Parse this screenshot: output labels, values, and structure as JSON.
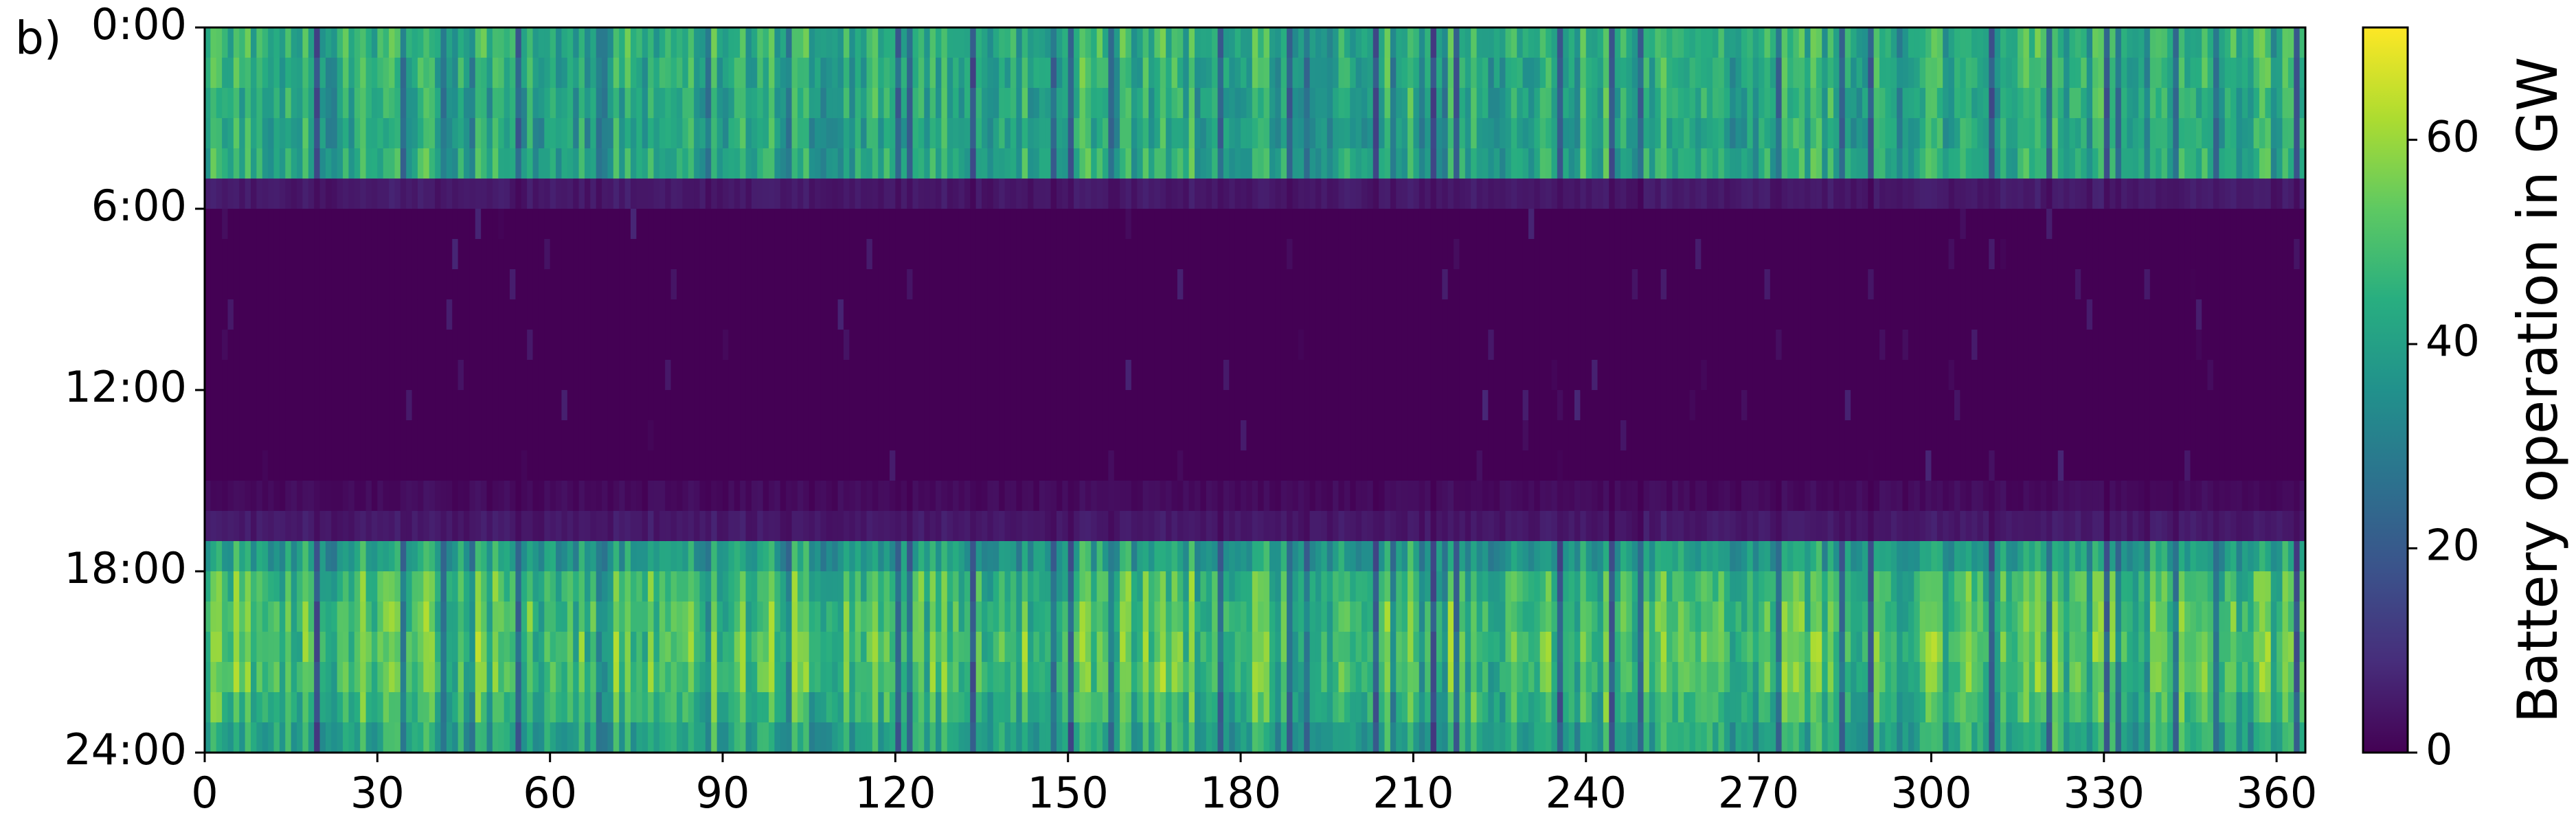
{
  "panel_label": "b)",
  "chart_data": {
    "type": "heatmap",
    "title": "",
    "xlabel": "",
    "ylabel": "",
    "x_range": [
      0,
      365
    ],
    "x_ticks": [
      0,
      30,
      60,
      90,
      120,
      150,
      180,
      210,
      240,
      270,
      300,
      330,
      360
    ],
    "x_tick_labels": [
      "0",
      "30",
      "60",
      "90",
      "120",
      "150",
      "180",
      "210",
      "240",
      "270",
      "300",
      "330",
      "360"
    ],
    "y_range": [
      0,
      24
    ],
    "y_ticks": [
      0,
      6,
      12,
      18,
      24
    ],
    "y_tick_labels": [
      "0:00",
      "6:00",
      "12:00",
      "18:00",
      "24:00"
    ],
    "y_inverted": true,
    "colorbar": {
      "label": "Battery operation in GW",
      "colormap": "viridis",
      "range": [
        0,
        71
      ],
      "ticks": [
        0,
        20,
        40,
        60
      ],
      "tick_labels": [
        "0",
        "20",
        "40",
        "60"
      ]
    },
    "hourly_profile_GW": [
      45,
      44,
      43,
      42,
      43,
      5,
      0,
      0,
      0,
      0,
      0,
      0,
      0,
      0,
      0,
      2,
      5,
      40,
      48,
      50,
      51,
      50,
      47,
      42
    ],
    "description_of_pattern": ""
  }
}
